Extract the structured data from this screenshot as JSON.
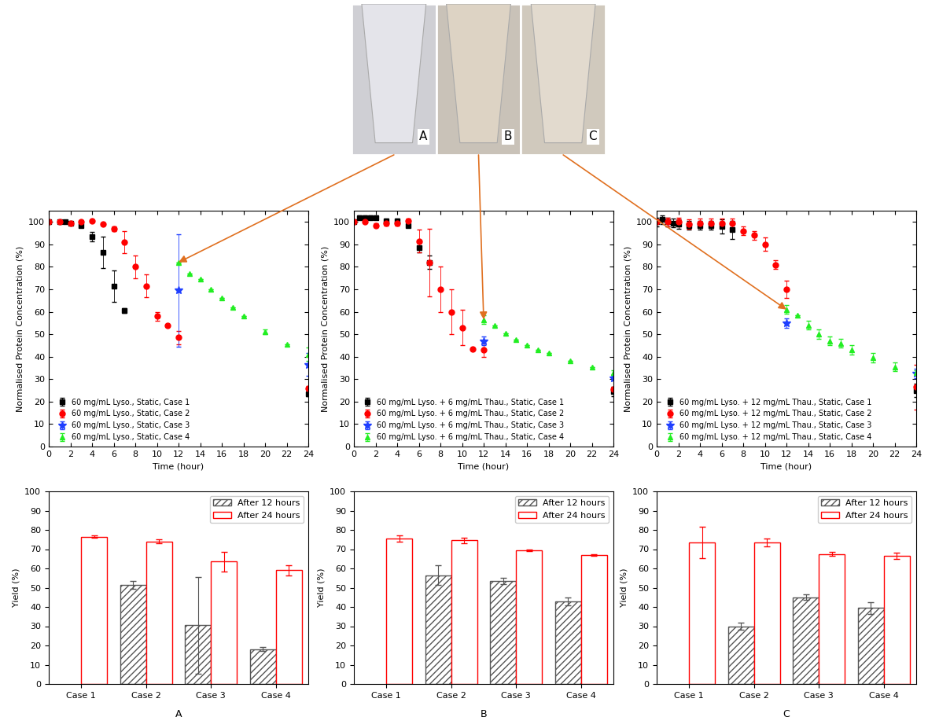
{
  "photo_labels": [
    "A",
    "B",
    "C"
  ],
  "panel_labels": [
    "A",
    "B",
    "C"
  ],
  "chart_data": [
    {
      "type": "scatter",
      "xlabel": "Time (hour)",
      "ylabel": "Normalised Protein Concentration (%)",
      "xlim": [
        0,
        24
      ],
      "xticks": [
        0,
        2,
        4,
        6,
        8,
        10,
        12,
        14,
        16,
        18,
        20,
        22,
        24
      ],
      "ylim": [
        0,
        105
      ],
      "yticks": [
        0,
        10,
        20,
        30,
        40,
        50,
        60,
        70,
        80,
        90,
        100
      ],
      "legend": "lower left",
      "series": [
        {
          "name": "60 mg/mL Lyso., Static, Case 1",
          "color": "#000000",
          "marker": "square",
          "x": [
            0,
            1,
            1.5,
            2,
            3,
            4,
            5,
            6,
            7,
            24
          ],
          "values": [
            100,
            100,
            100,
            99.5,
            98.5,
            93.5,
            86.5,
            71.5,
            60.5,
            23.5
          ],
          "errors": [
            0,
            0,
            0,
            0,
            1,
            2,
            7,
            7,
            1,
            1
          ]
        },
        {
          "name": "60 mg/mL Lyso., Static, Case 2",
          "color": "#ff0000",
          "marker": "circle",
          "x": [
            0,
            1,
            2,
            3,
            4,
            5,
            6,
            7,
            8,
            9,
            10,
            11,
            12,
            24
          ],
          "values": [
            100,
            100,
            99.5,
            100,
            100.5,
            99,
            97,
            91,
            80,
            71.5,
            58,
            54,
            48.5,
            26
          ],
          "errors": [
            0,
            0,
            0,
            0,
            0,
            0,
            1,
            5,
            5,
            5,
            2,
            0,
            3,
            1
          ]
        },
        {
          "name": "60 mg/mL Lyso., Static, Case 3",
          "color": "#1f3fff",
          "marker": "star",
          "x": [
            12,
            24
          ],
          "values": [
            69.5,
            36.5
          ],
          "errors": [
            25,
            5
          ]
        },
        {
          "name": "60 mg/mL Lyso., Static, Case 4",
          "color": "#22ee22",
          "marker": "triangle",
          "x": [
            12,
            13,
            14,
            15,
            16,
            17,
            18,
            20,
            22,
            24
          ],
          "values": [
            82,
            77,
            74.5,
            70,
            66,
            62,
            58,
            51,
            45.5,
            41
          ],
          "errors": [
            0,
            0,
            0,
            0,
            0,
            0,
            0,
            1,
            0,
            3
          ]
        }
      ]
    },
    {
      "type": "scatter",
      "xlabel": "Time (hour)",
      "ylabel": "Normalised Protein Concentration (%)",
      "xlim": [
        0,
        24
      ],
      "xticks": [
        0,
        2,
        4,
        6,
        8,
        10,
        12,
        14,
        16,
        18,
        20,
        22,
        24
      ],
      "ylim": [
        0,
        105
      ],
      "yticks": [
        0,
        10,
        20,
        30,
        40,
        50,
        60,
        70,
        80,
        90,
        100
      ],
      "legend": "lower left",
      "series": [
        {
          "name": "60 mg/mL Lyso. + 6 mg/mL Thau., Static, Case 1",
          "color": "#000000",
          "marker": "square",
          "x": [
            0,
            0.5,
            1,
            1.5,
            2,
            3,
            4,
            5,
            6,
            7,
            24
          ],
          "values": [
            100,
            102,
            102,
            102,
            102,
            100.5,
            100.5,
            98.5,
            88.5,
            82,
            24.5
          ],
          "errors": [
            0,
            1,
            1,
            1,
            1,
            1,
            1,
            1,
            2,
            3,
            2
          ]
        },
        {
          "name": "60 mg/mL Lyso. + 6 mg/mL Thau., Static, Case 2",
          "color": "#ff0000",
          "marker": "circle",
          "x": [
            0,
            1,
            2,
            3,
            4,
            5,
            6,
            7,
            8,
            9,
            10,
            11,
            12,
            24
          ],
          "values": [
            100,
            100,
            98.5,
            99.5,
            99.5,
            100.5,
            91.5,
            82,
            70,
            60,
            53,
            43.5,
            43,
            25.5
          ],
          "errors": [
            0,
            0,
            1,
            1,
            1,
            1,
            5,
            15,
            10,
            10,
            8,
            0,
            3,
            1
          ]
        },
        {
          "name": "60 mg/mL Lyso. + 6 mg/mL Thau., Static, Case 3",
          "color": "#1f3fff",
          "marker": "star",
          "x": [
            12,
            24
          ],
          "values": [
            47,
            30.5
          ],
          "errors": [
            2,
            1
          ]
        },
        {
          "name": "60 mg/mL Lyso. + 6 mg/mL Thau., Static, Case 4",
          "color": "#22ee22",
          "marker": "triangle",
          "x": [
            12,
            13,
            14,
            15,
            16,
            17,
            18,
            20,
            22,
            24
          ],
          "values": [
            56.5,
            54,
            50.5,
            47.5,
            45,
            43,
            41.5,
            38,
            35.5,
            33
          ],
          "errors": [
            2,
            0,
            0,
            0,
            0,
            0,
            0,
            0,
            0,
            1
          ]
        }
      ]
    },
    {
      "type": "scatter",
      "xlabel": "Time (hour)",
      "ylabel": "Normalised Protein Concentration (%)",
      "xlim": [
        0,
        24
      ],
      "xticks": [
        0,
        2,
        4,
        6,
        8,
        10,
        12,
        14,
        16,
        18,
        20,
        22,
        24
      ],
      "ylim": [
        0,
        105
      ],
      "yticks": [
        0,
        10,
        20,
        30,
        40,
        50,
        60,
        70,
        80,
        90,
        100
      ],
      "legend": "lower left",
      "series": [
        {
          "name": "60 mg/mL Lyso. + 12 mg/mL Thau., Static, Case 1",
          "color": "#000000",
          "marker": "square",
          "x": [
            0,
            0.5,
            1,
            1.5,
            2,
            3,
            4,
            5,
            6,
            7,
            24
          ],
          "values": [
            100,
            101,
            100,
            99.5,
            99,
            98.5,
            98.5,
            98.5,
            98,
            96.5,
            25
          ],
          "errors": [
            2,
            2,
            2,
            2,
            2,
            2,
            2,
            2,
            3,
            4,
            3
          ]
        },
        {
          "name": "60 mg/mL Lyso. + 12 mg/mL Thau., Static, Case 2",
          "color": "#ff0000",
          "marker": "circle",
          "x": [
            0,
            1,
            2,
            3,
            4,
            5,
            6,
            7,
            8,
            9,
            10,
            11,
            12,
            24
          ],
          "values": [
            100,
            100,
            100,
            99,
            99.5,
            99.5,
            99.5,
            99.5,
            96,
            94,
            90,
            81,
            70,
            26.5
          ],
          "errors": [
            0,
            2,
            2,
            2,
            2,
            2,
            2,
            2,
            2,
            2,
            3,
            2,
            4,
            10
          ]
        },
        {
          "name": "60 mg/mL Lyso. + 12 mg/mL Thau., Static, Case 3",
          "color": "#1f3fff",
          "marker": "star",
          "x": [
            12,
            24
          ],
          "values": [
            55,
            32.5
          ],
          "errors": [
            2,
            2
          ]
        },
        {
          "name": "60 mg/mL Lyso. + 12 mg/mL Thau., Static, Case 4",
          "color": "#22ee22",
          "marker": "triangle",
          "x": [
            12,
            13,
            14,
            15,
            16,
            17,
            18,
            20,
            22,
            24
          ],
          "values": [
            61,
            58.5,
            54,
            50,
            47,
            46,
            43,
            39.5,
            35.5,
            33
          ],
          "errors": [
            2,
            0,
            2,
            2,
            2,
            2,
            2,
            2,
            2,
            1
          ]
        }
      ]
    },
    {
      "type": "bar",
      "ylabel": "Yield (%)",
      "categories": [
        "Case 1",
        "Case 2",
        "Case 3",
        "Case 4"
      ],
      "ylim": [
        0,
        100
      ],
      "yticks": [
        0,
        10,
        20,
        30,
        40,
        50,
        60,
        70,
        80,
        90,
        100
      ],
      "legend": "upper right",
      "series": [
        {
          "name": "After 12 hours",
          "color": "#555555",
          "values": [
            null,
            51.5,
            30.5,
            18
          ],
          "errors": [
            null,
            2,
            25,
            1
          ]
        },
        {
          "name": "After 24 hours",
          "color": "#ff0000",
          "values": [
            76.5,
            74,
            63.5,
            59
          ],
          "errors": [
            0.5,
            1,
            5,
            2.5
          ]
        }
      ]
    },
    {
      "type": "bar",
      "ylabel": "Yield (%)",
      "categories": [
        "Case 1",
        "Case 2",
        "Case 3",
        "Case 4"
      ],
      "ylim": [
        0,
        100
      ],
      "yticks": [
        0,
        10,
        20,
        30,
        40,
        50,
        60,
        70,
        80,
        90,
        100
      ],
      "legend": "upper right",
      "series": [
        {
          "name": "After 12 hours",
          "color": "#555555",
          "values": [
            null,
            56.5,
            53.5,
            43
          ],
          "errors": [
            null,
            5,
            1.5,
            2
          ]
        },
        {
          "name": "After 24 hours",
          "color": "#ff0000",
          "values": [
            75.5,
            74.5,
            69.5,
            67
          ],
          "errors": [
            1.5,
            1.5,
            0.5,
            0.5
          ]
        }
      ]
    },
    {
      "type": "bar",
      "ylabel": "Yield (%)",
      "categories": [
        "Case 1",
        "Case 2",
        "Case 3",
        "Case 4"
      ],
      "ylim": [
        0,
        100
      ],
      "yticks": [
        0,
        10,
        20,
        30,
        40,
        50,
        60,
        70,
        80,
        90,
        100
      ],
      "legend": "upper right",
      "series": [
        {
          "name": "After 12 hours",
          "color": "#555555",
          "values": [
            null,
            30,
            45,
            39.5
          ],
          "errors": [
            null,
            2,
            1.5,
            3
          ]
        },
        {
          "name": "After 24 hours",
          "color": "#ff0000",
          "values": [
            73.5,
            73.5,
            67.5,
            66.5
          ],
          "errors": [
            8,
            2,
            1,
            1.5
          ]
        }
      ]
    }
  ]
}
